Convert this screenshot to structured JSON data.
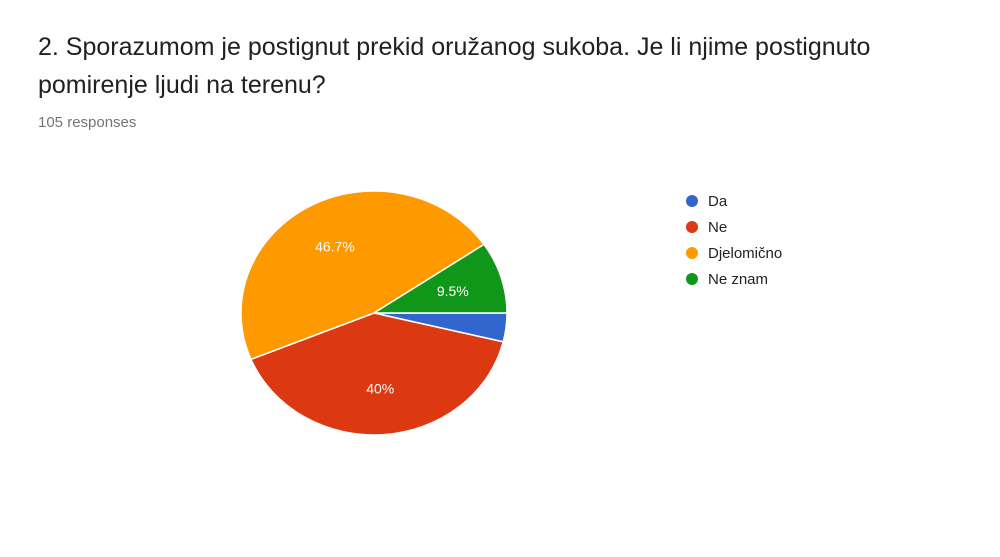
{
  "question": {
    "title": "2. Sporazumom je postignut prekid oružanog sukoba. Je li njime postignuto pomirenje ljudi na terenu?",
    "responses": "105 responses"
  },
  "chart_data": {
    "type": "pie",
    "title": "",
    "slices": [
      {
        "label": "Da",
        "value": 3.8,
        "percent_label": "",
        "color": "#3366cc"
      },
      {
        "label": "Ne",
        "value": 40.0,
        "percent_label": "40%",
        "color": "#dc3912"
      },
      {
        "label": "Djelomično",
        "value": 46.7,
        "percent_label": "46.7%",
        "color": "#ff9900"
      },
      {
        "label": "Ne znam",
        "value": 9.5,
        "percent_label": "9.5%",
        "color": "#109618"
      }
    ],
    "legend_position": "right"
  }
}
